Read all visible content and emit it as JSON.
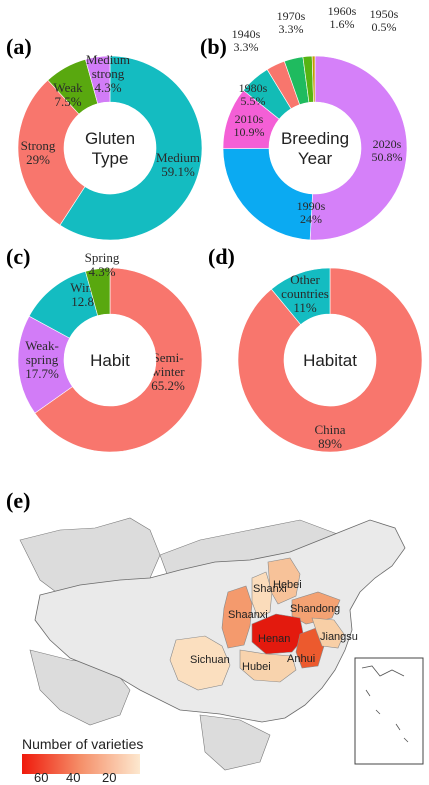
{
  "chart_data": [
    {
      "type": "pie",
      "panel": "(a)",
      "center_label": [
        "Gluten",
        "Type"
      ],
      "slices": [
        {
          "label": [
            "Medium",
            "59.1%"
          ],
          "value": 59.1,
          "color": "#14bcc1"
        },
        {
          "label": [
            "Strong",
            "29%"
          ],
          "value": 29.0,
          "color": "#f8766d"
        },
        {
          "label": [
            "Weak",
            "7.5%"
          ],
          "value": 7.5,
          "color": "#59a80f"
        },
        {
          "label": [
            "Medium",
            "strong",
            "4.3%"
          ],
          "value": 4.3,
          "color": "#d27cf7"
        }
      ]
    },
    {
      "type": "pie",
      "panel": "(b)",
      "center_label": [
        "Breeding",
        "Year"
      ],
      "slices": [
        {
          "label": [
            "2020s",
            "50.8%"
          ],
          "value": 50.8,
          "color": "#d580f9"
        },
        {
          "label": [
            "1990s",
            "24%"
          ],
          "value": 24.0,
          "color": "#0baaf2"
        },
        {
          "label": [
            "2010s",
            "10.9%"
          ],
          "value": 10.9,
          "color": "#f45fd6"
        },
        {
          "label": [
            "1980s",
            "5.5%"
          ],
          "value": 5.5,
          "color": "#12bcb6"
        },
        {
          "label": [
            "1940s",
            "3.3%"
          ],
          "value": 3.3,
          "color": "#f8766d"
        },
        {
          "label": [
            "1970s",
            "3.3%"
          ],
          "value": 3.3,
          "color": "#1fbb5f"
        },
        {
          "label": [
            "1960s",
            "1.6%"
          ],
          "value": 1.6,
          "color": "#56b412"
        },
        {
          "label": [
            "1950s",
            "0.5%"
          ],
          "value": 0.5,
          "color": "#c39b06"
        }
      ]
    },
    {
      "type": "pie",
      "panel": "(c)",
      "center_label": [
        "Habit"
      ],
      "slices": [
        {
          "label": [
            "Semi-",
            "winter",
            "65.2%"
          ],
          "value": 65.2,
          "color": "#f8766d"
        },
        {
          "label": [
            "Weak-",
            "spring",
            "17.7%"
          ],
          "value": 17.7,
          "color": "#d27cf7"
        },
        {
          "label": [
            "Winter",
            "12.8%"
          ],
          "value": 12.8,
          "color": "#14bcc1"
        },
        {
          "label": [
            "Spring",
            "4.3%"
          ],
          "value": 4.3,
          "color": "#59a80f"
        }
      ]
    },
    {
      "type": "pie",
      "panel": "(d)",
      "center_label": [
        "Habitat"
      ],
      "slices": [
        {
          "label": [
            "China",
            "89%"
          ],
          "value": 89.0,
          "color": "#f8766d"
        },
        {
          "label": [
            "Other",
            "countries",
            "11%"
          ],
          "value": 11.0,
          "color": "#14bcc1"
        }
      ]
    },
    {
      "type": "map",
      "panel": "(e)",
      "legend": {
        "title": "Number of varieties",
        "ticks": [
          "60",
          "40",
          "20"
        ],
        "color_low": "#fde8cf",
        "color_high": "#ef1a0c"
      },
      "regions": [
        {
          "name": "Henan",
          "color": "#e31a0e"
        },
        {
          "name": "Anhui",
          "color": "#ec5a2e"
        },
        {
          "name": "Shaanxi",
          "color": "#f49a6d"
        },
        {
          "name": "Shandong",
          "color": "#f4a273"
        },
        {
          "name": "Hebei",
          "color": "#f7c299"
        },
        {
          "name": "Jiangsu",
          "color": "#f8cfa6"
        },
        {
          "name": "Sichuan",
          "color": "#fbdfbf"
        },
        {
          "name": "Hubei",
          "color": "#f8d3ad"
        },
        {
          "name": "Shanxi",
          "color": "#fbdcbb"
        }
      ],
      "visible_labels": [
        "Shanxi",
        "Shaanxi",
        "Hebei",
        "Shandong",
        "Henan",
        "Anhui",
        "Jiangsu",
        "Hubei",
        "Sichuan"
      ]
    }
  ],
  "panels": {
    "a": "(a)",
    "b": "(b)",
    "c": "(c)",
    "d": "(d)",
    "e": "(e)"
  }
}
